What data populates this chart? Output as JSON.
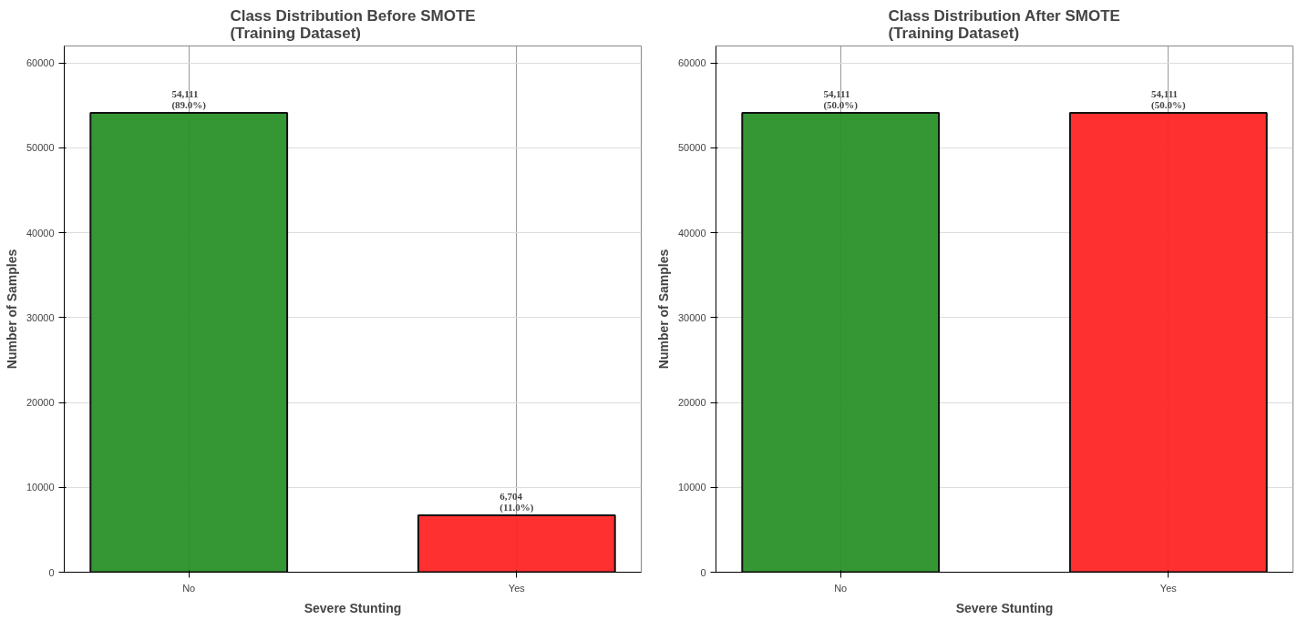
{
  "chart_data": [
    {
      "type": "bar",
      "title": "Class Distribution Before SMOTE\n(Training Dataset)",
      "xlabel": "Severe Stunting",
      "ylabel": "Number of Samples",
      "categories": [
        "No",
        "Yes"
      ],
      "values": [
        54111,
        6704
      ],
      "colors": [
        "#2a9128",
        "#ff2525"
      ],
      "value_labels": [
        "54,111\n(89.0%)",
        "6,704\n(11.0%)"
      ],
      "ylim": [
        0,
        62000
      ],
      "yticks": [
        0,
        10000,
        20000,
        30000,
        40000,
        50000,
        60000
      ],
      "grid": true
    },
    {
      "type": "bar",
      "title": "Class Distribution After SMOTE\n(Training Dataset)",
      "xlabel": "Severe Stunting",
      "ylabel": "Number of Samples",
      "categories": [
        "No",
        "Yes"
      ],
      "values": [
        54111,
        54111
      ],
      "colors": [
        "#2a9128",
        "#ff2525"
      ],
      "value_labels": [
        "54,111\n(50.0%)",
        "54,111\n(50.0%)"
      ],
      "ylim": [
        0,
        62000
      ],
      "yticks": [
        0,
        10000,
        20000,
        30000,
        40000,
        50000,
        60000
      ],
      "grid": true
    }
  ]
}
